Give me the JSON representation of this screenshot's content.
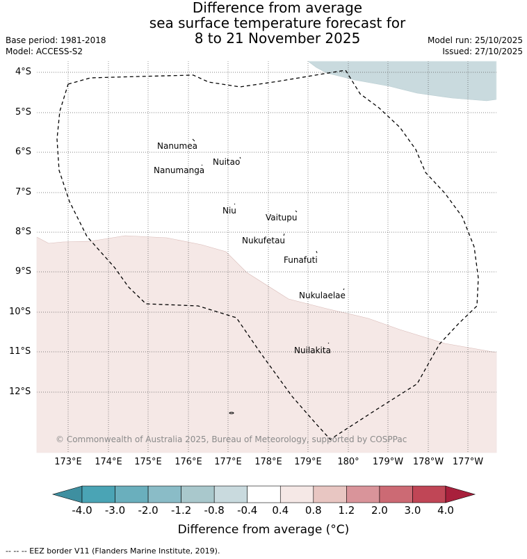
{
  "title": {
    "line1": "Difference from average",
    "line2": "sea surface temperature forecast for",
    "line3": "8 to 21 November 2025"
  },
  "meta_left": {
    "base_period": "Base period: 1981-2018",
    "model": "Model: ACCESS-S2"
  },
  "meta_right": {
    "model_run": "Model run: 25/10/2025",
    "issued": "Issued: 27/10/2025"
  },
  "latitude_labels": [
    "4°S",
    "5°S",
    "6°S",
    "7°S",
    "8°S",
    "9°S",
    "10°S",
    "11°S",
    "12°S"
  ],
  "longitude_labels": [
    "173°E",
    "174°E",
    "175°E",
    "176°E",
    "177°E",
    "178°E",
    "179°E",
    "180°",
    "179°W",
    "178°W",
    "177°W"
  ],
  "places": [
    {
      "name": "Nanumea"
    },
    {
      "name": "Nuitao"
    },
    {
      "name": "Nanumanga"
    },
    {
      "name": "Niu"
    },
    {
      "name": "Vaitupu"
    },
    {
      "name": "Nukufetau"
    },
    {
      "name": "Funafuti"
    },
    {
      "name": "Nukulaelae"
    },
    {
      "name": "Nuilakita"
    }
  ],
  "copyright": "© Commonwealth of Australia 2025, Bureau of Meteorology, supported by COSPPac",
  "colorbar": {
    "ticks": [
      "-4.0",
      "-3.0",
      "-2.0",
      "-1.2",
      "-0.8",
      "-0.4",
      "0.4",
      "0.8",
      "1.2",
      "2.0",
      "3.0",
      "4.0"
    ],
    "colors": [
      "#3e8fa0",
      "#4aa4b5",
      "#6aafbd",
      "#8abcc7",
      "#a9c8cc",
      "#c9dade",
      "#ffffff",
      "#f5e8e6",
      "#e8c6c2",
      "#d9949a",
      "#cc6a74",
      "#c04656",
      "#a8203c"
    ],
    "label": "Difference from average (°C)"
  },
  "legend_footer": "--  --  -- EEZ border V11 (Flanders Marine Institute, 2019).",
  "fill_colors": {
    "warm": "#f5e8e6",
    "cool": "#c9dade"
  }
}
